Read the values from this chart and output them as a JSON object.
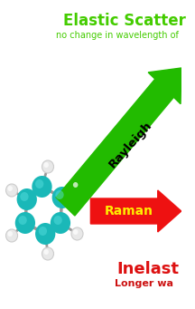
{
  "title_text": "Elastic Scatter",
  "title_color": "#44cc00",
  "subtitle_text": "no change in wavelength of",
  "subtitle_color": "#44cc00",
  "rayleigh_label": "Rayleigh",
  "rayleigh_color": "#22bb00",
  "raman_label": "Raman",
  "raman_label_color": "#ffee00",
  "raman_color": "#ee1111",
  "inelastic_text": "Inelast",
  "inelastic_color": "#dd1111",
  "longer_text": "Longer wa",
  "longer_color": "#cc1111",
  "bg_color": "#ffffff",
  "mol_teal": "#1ab8b8",
  "mol_white": "#e8e8e8",
  "mol_gray": "#999999"
}
